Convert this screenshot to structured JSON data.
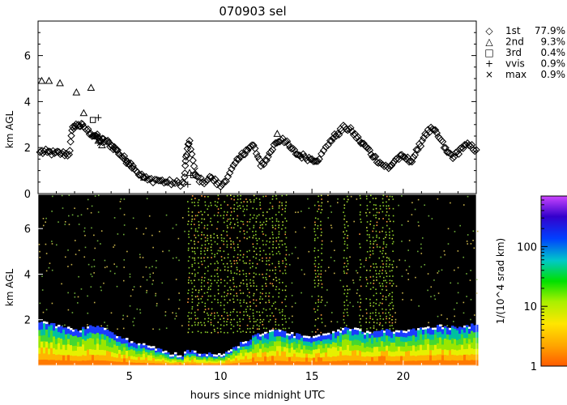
{
  "title": "070903 sel",
  "chart_data": [
    {
      "id": "cloud-base-heights",
      "type": "scatter",
      "title": "070903 sel",
      "ylabel": "km AGL",
      "xlim": [
        0,
        24
      ],
      "ylim": [
        0,
        7.5
      ],
      "yticks": [
        0,
        2,
        4,
        6
      ],
      "grid": false,
      "legend_position": "right",
      "legend": [
        {
          "marker": "diamond",
          "symbol": "◇",
          "label": "1st",
          "value": "77.9%"
        },
        {
          "marker": "triangle",
          "symbol": "△",
          "label": "2nd",
          "value": "9.3%"
        },
        {
          "marker": "square",
          "symbol": "□",
          "label": "3rd",
          "value": "0.4%"
        },
        {
          "marker": "plus",
          "symbol": "+",
          "label": "vvis",
          "value": "0.9%"
        },
        {
          "marker": "cross",
          "symbol": "×",
          "label": "max",
          "value": "0.9%"
        }
      ],
      "series": [
        {
          "name": "1st",
          "marker": "diamond",
          "x": [
            0.1,
            0.5,
            0.9,
            1.3,
            1.7,
            1.9,
            2.2,
            2.5,
            2.9,
            3.2,
            3.4,
            3.7,
            4.0,
            4.3,
            4.6,
            4.9,
            5.2,
            5.6,
            6.0,
            6.5,
            7.0,
            7.5,
            8.0,
            8.1,
            8.3,
            8.6,
            9.0,
            9.5,
            10.0,
            10.5,
            11.0,
            11.4,
            11.8,
            12.2,
            12.6,
            13.0,
            13.4,
            13.8,
            14.2,
            14.6,
            15.0,
            15.4,
            16.0,
            16.4,
            16.8,
            17.2,
            17.6,
            18.0,
            18.4,
            18.8,
            19.2,
            19.6,
            20.0,
            20.4,
            20.8,
            21.2,
            21.6,
            22.0,
            22.4,
            22.8,
            23.2,
            23.6,
            24.0
          ],
          "y": [
            1.8,
            1.8,
            1.75,
            1.75,
            1.7,
            2.9,
            3.0,
            2.9,
            2.6,
            2.5,
            2.3,
            2.3,
            2.1,
            1.9,
            1.6,
            1.4,
            1.2,
            0.8,
            0.6,
            0.6,
            0.5,
            0.45,
            0.45,
            1.6,
            2.3,
            0.8,
            0.5,
            0.7,
            0.3,
            0.9,
            1.5,
            1.9,
            2.1,
            1.2,
            1.6,
            2.2,
            2.4,
            2.0,
            1.7,
            1.6,
            1.5,
            1.5,
            2.3,
            2.6,
            2.9,
            2.7,
            2.3,
            2.0,
            1.6,
            1.3,
            1.1,
            1.5,
            1.6,
            1.4,
            1.9,
            2.6,
            2.8,
            2.4,
            1.8,
            1.6,
            2.0,
            2.1,
            1.9
          ]
        },
        {
          "name": "2nd",
          "marker": "triangle",
          "x": [
            0.2,
            0.6,
            1.2,
            2.1,
            2.5,
            2.9,
            3.3,
            3.5,
            5.8,
            8.3,
            13.1
          ],
          "y": [
            4.9,
            4.9,
            4.8,
            4.4,
            3.5,
            4.6,
            2.3,
            2.1,
            0.7,
            0.9,
            2.6
          ]
        },
        {
          "name": "3rd",
          "marker": "square",
          "x": [
            3.0,
            8.5
          ],
          "y": [
            3.2,
            0.8
          ]
        },
        {
          "name": "vvis",
          "marker": "plus",
          "x": [
            3.1,
            3.3,
            8.2
          ],
          "y": [
            2.5,
            3.3,
            0.4
          ]
        },
        {
          "name": "max",
          "marker": "cross",
          "x": [
            3.4,
            8.6
          ],
          "y": [
            2.2,
            1.0
          ]
        }
      ]
    },
    {
      "id": "backscatter",
      "type": "heatmap",
      "xlabel": "hours since midnight UTC",
      "ylabel": "km AGL",
      "xlim": [
        0,
        24
      ],
      "ylim": [
        0,
        7.5
      ],
      "xticks": [
        5,
        10,
        15,
        20
      ],
      "yticks": [
        2,
        4,
        6
      ],
      "colorbar": {
        "label": "1/(10^4 srad km)",
        "scale": "log",
        "range": [
          1,
          700
        ],
        "ticks": [
          "1",
          "10",
          "100"
        ]
      },
      "profile_hours": [
        0,
        1,
        2,
        3,
        4,
        5,
        6,
        7,
        7.9,
        8.1,
        9,
        10,
        11,
        12,
        13,
        14,
        15,
        16,
        17,
        18,
        19,
        20,
        21,
        22,
        23,
        24
      ],
      "layer_top_km": [
        1.9,
        1.7,
        1.5,
        1.7,
        1.4,
        1.0,
        0.8,
        0.5,
        0.4,
        0.6,
        0.5,
        0.4,
        0.9,
        1.3,
        1.5,
        1.3,
        1.2,
        1.4,
        1.6,
        1.4,
        1.5,
        1.4,
        1.6,
        1.7,
        1.6,
        1.8
      ],
      "dense_noise_hours": [
        [
          8.0,
          13.6
        ],
        [
          15.0,
          15.6
        ],
        [
          16.6,
          17.0
        ],
        [
          17.5,
          17.6
        ],
        [
          17.9,
          19.4
        ]
      ],
      "clear_hours": [
        [
          0,
          8.0
        ],
        [
          13.6,
          15.0
        ],
        [
          15.6,
          16.6
        ],
        [
          17.0,
          17.5
        ],
        [
          19.4,
          24
        ]
      ]
    }
  ]
}
